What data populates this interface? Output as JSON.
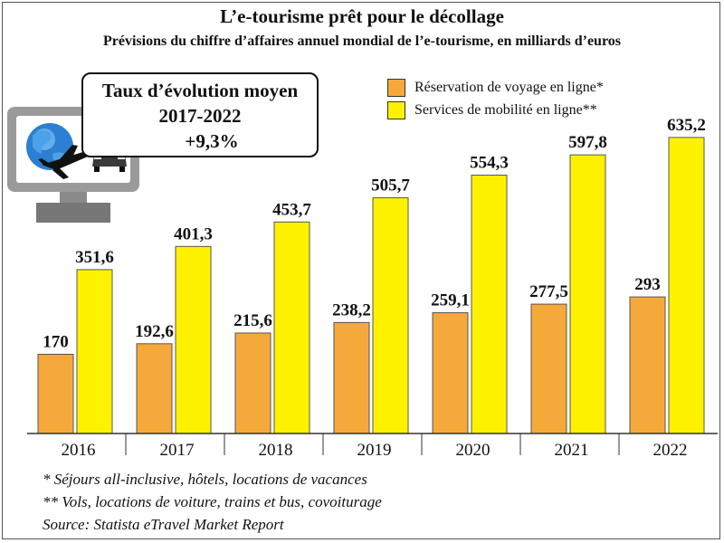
{
  "header": {
    "title": "L’e-tourisme prêt pour le décollage",
    "subtitle": "Prévisions du chiffre d’affaires annuel mondial de l’e-tourisme, en milliards d’euros"
  },
  "rate_box": {
    "line1": "Taux d’évolution moyen",
    "line2": "2017-2022",
    "line3": "+9,3%"
  },
  "illustration": {
    "icons": [
      "computer-monitor-icon",
      "globe-icon",
      "airplane-icon",
      "key-icon",
      "car-icon"
    ]
  },
  "chart_data": {
    "type": "bar",
    "title": "L’e-tourisme prêt pour le décollage",
    "subtitle": "Prévisions du chiffre d’affaires annuel mondial de l’e-tourisme, en milliards d’euros",
    "xlabel": "",
    "ylabel": "",
    "categories": [
      "2016",
      "2017",
      "2018",
      "2019",
      "2020",
      "2021",
      "2022"
    ],
    "series": [
      {
        "name": "Réservation de voyage en ligne*",
        "color": "#F5A93B",
        "values": [
          170,
          192.6,
          215.6,
          238.2,
          259.1,
          277.5,
          293
        ],
        "labels": [
          "170",
          "192,6",
          "215,6",
          "238,2",
          "259,1",
          "277,5",
          "293"
        ]
      },
      {
        "name": "Services de mobilité en ligne**",
        "color": "#FFF200",
        "values": [
          351.6,
          401.3,
          453.7,
          505.7,
          554.3,
          597.8,
          635.2
        ],
        "labels": [
          "351,6",
          "401,3",
          "453,7",
          "505,7",
          "554,3",
          "597,8",
          "635,2"
        ]
      }
    ],
    "ylim": [
      0,
      650
    ],
    "grid": false,
    "legend": "top-right"
  },
  "footnotes": {
    "note1": "* Séjours all-inclusive, hôtels, locations de vacances",
    "note2": "** Vols, locations de voiture, trains et bus, covoiturage",
    "source": "Source: Statista eTravel Market Report"
  }
}
